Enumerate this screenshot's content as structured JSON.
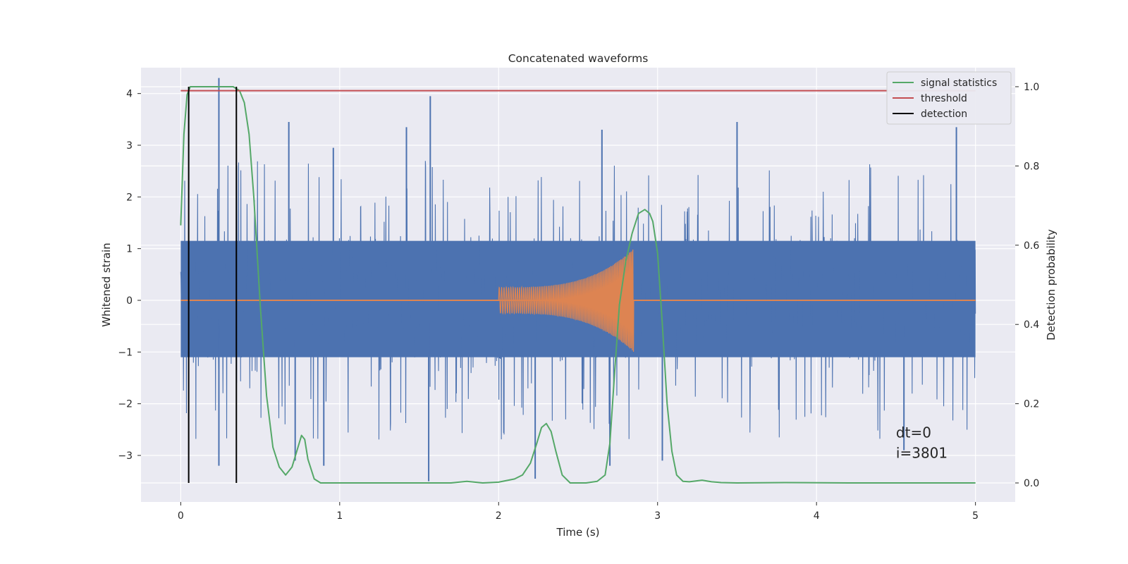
{
  "chart_data": {
    "type": "line",
    "title": "Concatenated waveforms",
    "xlabel": "Time (s)",
    "ylabel": "Whitened strain",
    "y2label": "Detection probability",
    "xlim": [
      -0.25,
      5.25
    ],
    "ylim": [
      -3.9,
      4.5
    ],
    "y2lim": [
      -0.048,
      1.048
    ],
    "xticks": [
      0,
      1,
      2,
      3,
      4,
      5
    ],
    "yticks": [
      -3,
      -2,
      -1,
      0,
      1,
      2,
      3,
      4
    ],
    "y2ticks": [
      0.0,
      0.2,
      0.4,
      0.6,
      0.8,
      1.0
    ],
    "grid": true,
    "legend_position": "top-right",
    "colors": {
      "background": "#eaeaf2",
      "grid": "#ffffff",
      "strain": "#4c72b0",
      "template": "#dd8452",
      "signal_statistics": "#55a868",
      "threshold": "#c44e52",
      "detection": "#000000"
    },
    "legend": [
      {
        "label": "signal statistics",
        "color": "#55a868"
      },
      {
        "label": "threshold",
        "color": "#c44e52"
      },
      {
        "label": "detection",
        "color": "#000000"
      }
    ],
    "series": [
      {
        "name": "signal statistics",
        "axis": "right",
        "x": [
          0.0,
          0.02,
          0.04,
          0.06,
          0.08,
          0.1,
          0.15,
          0.2,
          0.25,
          0.3,
          0.33,
          0.37,
          0.4,
          0.43,
          0.46,
          0.5,
          0.54,
          0.58,
          0.62,
          0.66,
          0.7,
          0.73,
          0.76,
          0.78,
          0.8,
          0.84,
          0.88,
          0.92,
          1.0,
          1.2,
          1.5,
          1.7,
          1.8,
          1.9,
          2.0,
          2.1,
          2.15,
          2.2,
          2.24,
          2.27,
          2.3,
          2.33,
          2.36,
          2.4,
          2.45,
          2.55,
          2.62,
          2.67,
          2.7,
          2.73,
          2.76,
          2.8,
          2.84,
          2.88,
          2.92,
          2.95,
          2.97,
          3.0,
          3.03,
          3.06,
          3.09,
          3.12,
          3.16,
          3.2,
          3.28,
          3.34,
          3.4,
          3.5,
          3.8,
          4.2,
          4.6,
          5.0
        ],
        "values": [
          0.65,
          0.88,
          0.98,
          1.0,
          1.0,
          1.0,
          1.0,
          1.0,
          1.0,
          1.0,
          1.0,
          0.99,
          0.96,
          0.88,
          0.72,
          0.45,
          0.22,
          0.09,
          0.04,
          0.02,
          0.04,
          0.08,
          0.12,
          0.11,
          0.06,
          0.01,
          0.0,
          0.0,
          0.0,
          0.0,
          0.0,
          0.0,
          0.004,
          0.0,
          0.002,
          0.01,
          0.02,
          0.05,
          0.1,
          0.14,
          0.15,
          0.13,
          0.08,
          0.02,
          0.0,
          0.0,
          0.004,
          0.02,
          0.1,
          0.28,
          0.45,
          0.56,
          0.63,
          0.68,
          0.69,
          0.68,
          0.66,
          0.58,
          0.4,
          0.2,
          0.08,
          0.02,
          0.004,
          0.003,
          0.007,
          0.003,
          0.001,
          0.0,
          0.001,
          0.0,
          0.0,
          0.0
        ]
      },
      {
        "name": "threshold",
        "axis": "right",
        "x": [
          0.0,
          5.0
        ],
        "values": [
          0.99,
          0.99
        ]
      }
    ],
    "strain": {
      "axis": "left",
      "x_range": [
        0.0,
        5.0
      ],
      "noise_band": [
        -1.1,
        1.15
      ],
      "peaks": [
        {
          "x": 0.24,
          "y": 4.3
        },
        {
          "x": 0.24,
          "y": -3.2
        },
        {
          "x": 0.68,
          "y": 3.45
        },
        {
          "x": 0.72,
          "y": -3.1
        },
        {
          "x": 0.9,
          "y": -3.2
        },
        {
          "x": 0.96,
          "y": 2.95
        },
        {
          "x": 1.42,
          "y": 3.35
        },
        {
          "x": 1.57,
          "y": 3.95
        },
        {
          "x": 1.56,
          "y": -3.5
        },
        {
          "x": 2.23,
          "y": -3.45
        },
        {
          "x": 2.65,
          "y": 3.3
        },
        {
          "x": 2.7,
          "y": -3.2
        },
        {
          "x": 3.03,
          "y": -3.1
        },
        {
          "x": 3.5,
          "y": 3.45
        },
        {
          "x": 4.55,
          "y": -2.9
        },
        {
          "x": 4.88,
          "y": 3.35
        }
      ]
    },
    "template": {
      "axis": "left",
      "chirp_start": 2.0,
      "chirp_end": 2.85,
      "start_amplitude": 0.25,
      "end_amplitude_max": 1.1,
      "end_amplitude_min": -1.35
    },
    "detections_x": [
      0.05,
      0.35
    ],
    "annotation": {
      "x": 4.5,
      "y_lines": [
        -2.65,
        -3.05
      ],
      "lines": [
        "dt=0",
        "i=3801"
      ]
    }
  }
}
